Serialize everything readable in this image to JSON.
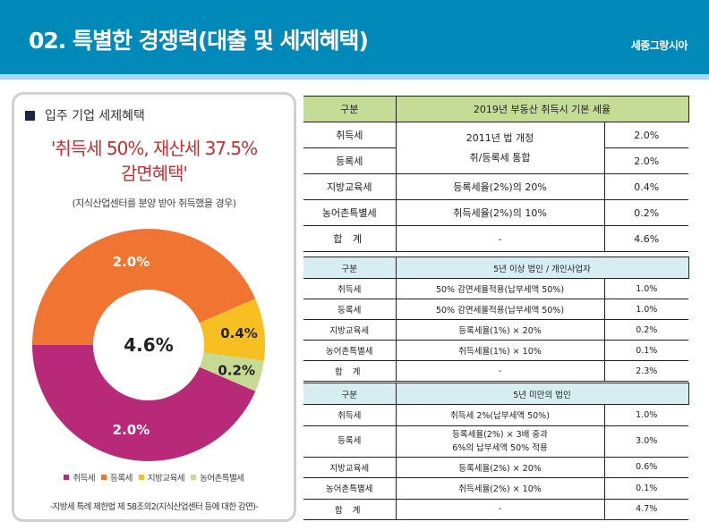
{
  "header": {
    "title": "02. 특별한 경쟁력(대출 및 세제혜택)",
    "brand": "세종그랑시아",
    "colors": {
      "banner": "#0089b9",
      "strip": "#a9d6f1"
    }
  },
  "left_panel": {
    "heading": "입주 기업 세제혜택",
    "headline_line1": "'취득세 50%, 재산세 37.5%",
    "headline_line2": "감면혜택'",
    "subnote": "(지식산업센터를 분양 받아 취득했을 경우)",
    "footnote": "-지방세 특례 제한법 제 58조의2(지식산업센터 등에 대한 감면)-"
  },
  "chart_data": {
    "type": "pie",
    "variant": "donut",
    "title": "",
    "center_label": "4.6%",
    "categories": [
      "취득세",
      "등록세",
      "지방교육세",
      "농어촌특별세"
    ],
    "values": [
      2.0,
      2.0,
      0.4,
      0.2
    ],
    "value_labels": [
      "2.0%",
      "2.0%",
      "0.4%",
      "0.2%"
    ],
    "colors": [
      "#b82a77",
      "#f07533",
      "#f6bf22",
      "#c5da93"
    ],
    "label_colors": [
      "#ffffff",
      "#ffffff",
      "#222222",
      "#222222"
    ],
    "start_angle_deg": 270,
    "direction": "clockwise",
    "slice_order": [
      1,
      2,
      3,
      0
    ],
    "legend_position": "bottom"
  },
  "tables": {
    "basic": {
      "header": [
        "구분",
        "2019년 부동산 취득시 기본 세율"
      ],
      "header_color": "#c5dc97",
      "rows": [
        {
          "name": "취득세",
          "rate": "2.0%"
        },
        {
          "name": "등록세",
          "rate": "2.0%"
        },
        {
          "name": "지방교육세",
          "basis": "등록세율(2%)의 20%",
          "rate": "0.4%"
        },
        {
          "name": "농어촌특별세",
          "basis": "취득세율(2%)의 10%",
          "rate": "0.2%"
        },
        {
          "name": "합 계",
          "basis": "-",
          "rate": "4.6%"
        }
      ],
      "merged_basis_line1": "2011년 법 개정",
      "merged_basis_line2": "취/등록세 통합"
    },
    "over5": {
      "header": [
        "구분",
        "5년 이상 법인 / 개인사업자"
      ],
      "header_color": "#d6eef1",
      "rows": [
        {
          "name": "취득세",
          "basis": "50% 감면세율적용(납부세액 50%)",
          "rate": "1.0%"
        },
        {
          "name": "등록세",
          "basis": "50% 감면세율적용(납부세액 50%)",
          "rate": "1.0%"
        },
        {
          "name": "지방교육세",
          "basis": "등록세율(1%) × 20%",
          "rate": "0.2%"
        },
        {
          "name": "농어촌특별세",
          "basis": "취득세율(1%) × 10%",
          "rate": "0.1%"
        },
        {
          "name": "합 계",
          "basis": "-",
          "rate": "2.3%"
        }
      ]
    },
    "under5": {
      "header": [
        "구분",
        "5년 미만의 법인"
      ],
      "header_color": "#d6eef1",
      "rows": [
        {
          "name": "취득세",
          "basis": "취득세 2%(납부세액 50%)",
          "rate": "1.0%"
        },
        {
          "name": "등록세",
          "basis_line1": "등록세율(2%) × 3배 중과",
          "basis_line2": "6%의 납부세액 50% 적용",
          "rate": "3.0%"
        },
        {
          "name": "지방교육세",
          "basis": "등록세율(2%) × 20%",
          "rate": "0.6%"
        },
        {
          "name": "농어촌특별세",
          "basis": "취득세율(2%) × 10%",
          "rate": "0.1%"
        },
        {
          "name": "합 계",
          "basis": "-",
          "rate": "4.7%"
        }
      ]
    }
  }
}
